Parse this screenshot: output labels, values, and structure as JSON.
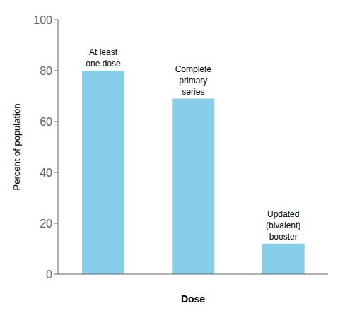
{
  "chart_data": {
    "type": "bar",
    "categories": [
      "At least\none dose",
      "Complete\nprimary\nseries",
      "Updated\n(bivalent)\nbooster"
    ],
    "values": [
      80,
      69,
      12
    ],
    "color": "#87CEEB",
    "xlabel": "Dose",
    "ylabel": "Percent of population",
    "ylim": [
      0,
      100
    ],
    "yticks": [
      0,
      20,
      40,
      60,
      80,
      100
    ],
    "grid": false,
    "tick_labels": "y"
  }
}
